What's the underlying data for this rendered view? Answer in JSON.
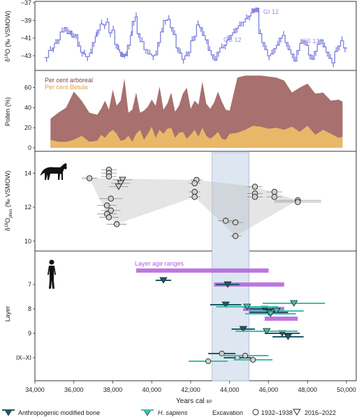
{
  "chart_data": [
    {
      "type": "line",
      "ylabel": "δ18O (‰ VSMOW)",
      "ylim": [
        -44.5,
        -37
      ],
      "yticks": [
        -43,
        -41,
        -39,
        -37
      ],
      "annotations": [
        "GI 12",
        "GS 12",
        "GS 13"
      ],
      "color": "#7d7fe0",
      "series": [
        {
          "x": [
            34500,
            34700,
            34900,
            35000,
            35150,
            35300,
            35500,
            35650,
            35800,
            35900,
            36050,
            36200,
            36350,
            36500,
            36600,
            36800,
            36950,
            37100,
            37200,
            37350,
            37500,
            37650,
            37800,
            37950,
            38100,
            38250,
            38350,
            38450,
            38550,
            38650,
            38750,
            38900,
            39000,
            39150,
            39250,
            39400,
            39600,
            39800,
            40000,
            40150,
            40300,
            40450,
            40600,
            40800,
            40950,
            41100,
            41250,
            41400,
            41550,
            41700,
            41850,
            42000,
            42150,
            42300,
            42450,
            42600,
            42750,
            42900,
            43050,
            43200,
            43350,
            43500,
            43700,
            43850,
            44000,
            44150,
            44300,
            44450,
            44600,
            44800,
            44950,
            45100,
            45200,
            45300,
            45400,
            45500,
            45650,
            45800,
            45950,
            46100,
            46250,
            46400,
            46550,
            46700,
            46850,
            47000,
            47150,
            47300,
            47450,
            47600,
            47750,
            47900,
            48050,
            48200,
            48350,
            48500,
            48650,
            48800,
            48950,
            49100,
            49250,
            49400,
            49550,
            49700,
            49850,
            50000
          ],
          "y": [
            -43.2,
            -42.4,
            -42.1,
            -41.6,
            -41.2,
            -40.3,
            -39.8,
            -40.5,
            -40.2,
            -40.9,
            -40.6,
            -41.9,
            -42.6,
            -42.8,
            -43.1,
            -42.7,
            -41.5,
            -40.8,
            -40.1,
            -39.4,
            -39.5,
            -39.2,
            -40.4,
            -40.1,
            -41.7,
            -42.3,
            -42.6,
            -43.1,
            -42.8,
            -43.0,
            -41.8,
            -40.7,
            -39.1,
            -38.6,
            -40.5,
            -41.4,
            -42.3,
            -42.8,
            -43.0,
            -42.9,
            -41.5,
            -40.3,
            -39.0,
            -38.9,
            -39.8,
            -40.6,
            -42.1,
            -42.7,
            -43.4,
            -43.0,
            -42.6,
            -41.3,
            -40.8,
            -39.5,
            -39.8,
            -40.7,
            -41.2,
            -42.4,
            -42.9,
            -43.5,
            -42.6,
            -42.1,
            -41.8,
            -41.2,
            -40.7,
            -40.4,
            -39.9,
            -39.6,
            -39.2,
            -38.8,
            -38.5,
            -38.1,
            -37.7,
            -38.0,
            -37.6,
            -40.5,
            -41.5,
            -42.3,
            -43.0,
            -42.8,
            -42.2,
            -41.8,
            -41.0,
            -40.7,
            -41.5,
            -42.3,
            -42.8,
            -43.6,
            -42.4,
            -41.6,
            -41.3,
            -41.8,
            -42.9,
            -43.4,
            -42.5,
            -41.7,
            -41.2,
            -42.0,
            -42.6,
            -43.3,
            -43.8,
            -42.5,
            -41.9,
            -41.3,
            -42.1,
            -42.2
          ]
        }
      ]
    },
    {
      "type": "area",
      "ylabel": "Pollen (%)",
      "ylim": [
        0,
        75
      ],
      "yticks": [
        0,
        20,
        40,
        60
      ],
      "x": [
        34800,
        35200,
        35600,
        36000,
        36400,
        36800,
        37200,
        37400,
        37600,
        37800,
        38000,
        38200,
        38400,
        38600,
        38800,
        39000,
        39200,
        39400,
        39600,
        39800,
        40000,
        40200,
        40400,
        40600,
        40800,
        41000,
        41200,
        41400,
        41600,
        41800,
        42000,
        42200,
        42400,
        42600,
        42800,
        43000,
        43200,
        43400,
        43600,
        43800,
        44000,
        44400,
        44800,
        45200,
        45600,
        46000,
        46400,
        46800,
        47200,
        47600,
        48000,
        48400,
        48800,
        49200,
        49600,
        49800
      ],
      "series": [
        {
          "name": "Per cent arboreal",
          "color": "#a8706e",
          "values": [
            29,
            35,
            40,
            56,
            47,
            35,
            33,
            39,
            47,
            38,
            58,
            42,
            47,
            69,
            35,
            38,
            55,
            35,
            37,
            41,
            48,
            42,
            61,
            38,
            44,
            55,
            36,
            42,
            54,
            60,
            39,
            47,
            43,
            66,
            44,
            39,
            45,
            56,
            46,
            38,
            37,
            70,
            72,
            72,
            72,
            71,
            70,
            67,
            55,
            60,
            64,
            54,
            55,
            47,
            48,
            46
          ]
        },
        {
          "name": "Per cent Betula",
          "color": "#e8b868",
          "values": [
            8,
            6,
            6,
            8,
            12,
            6,
            7,
            13,
            10,
            15,
            18,
            14,
            7,
            8,
            12,
            6,
            14,
            18,
            8,
            14,
            21,
            10,
            18,
            14,
            19,
            20,
            10,
            15,
            16,
            9,
            13,
            18,
            11,
            20,
            12,
            9,
            12,
            16,
            9,
            8,
            14,
            15,
            18,
            22,
            21,
            19,
            20,
            18,
            21,
            16,
            22,
            13,
            18,
            14,
            10,
            11
          ]
        }
      ]
    },
    {
      "type": "scatter",
      "ylabel": "δ18Ophos (‰ VSMOW)",
      "ylim": [
        9.5,
        15.2
      ],
      "yticks": [
        10,
        12,
        14
      ],
      "series": [
        {
          "name": "Excavation 1932–1938",
          "marker": "circle",
          "points": [
            {
              "x": 36800,
              "y": 13.7,
              "xerr": 400
            },
            {
              "x": 37800,
              "y": 14.2,
              "xerr": 400
            },
            {
              "x": 37800,
              "y": 14.0,
              "xerr": 400
            },
            {
              "x": 37800,
              "y": 13.8,
              "xerr": 400
            },
            {
              "x": 37900,
              "y": 12.5,
              "xerr": 600
            },
            {
              "x": 37700,
              "y": 12.1,
              "xerr": 500
            },
            {
              "x": 37900,
              "y": 11.8,
              "xerr": 500
            },
            {
              "x": 37700,
              "y": 11.6,
              "xerr": 500
            },
            {
              "x": 37800,
              "y": 11.4,
              "xerr": 500
            },
            {
              "x": 38200,
              "y": 11.0,
              "xerr": 500
            },
            {
              "x": 42300,
              "y": 13.6,
              "xerr": 300
            },
            {
              "x": 42200,
              "y": 13.4,
              "xerr": 300
            },
            {
              "x": 42200,
              "y": 12.9,
              "xerr": 300
            },
            {
              "x": 42200,
              "y": 12.6,
              "xerr": 300
            },
            {
              "x": 43800,
              "y": 11.2,
              "xerr": 400
            },
            {
              "x": 44300,
              "y": 11.1,
              "xerr": 400
            },
            {
              "x": 44300,
              "y": 10.3,
              "xerr": 300
            },
            {
              "x": 45300,
              "y": 13.2,
              "xerr": 400
            },
            {
              "x": 45300,
              "y": 12.8,
              "xerr": 400
            },
            {
              "x": 45300,
              "y": 12.6,
              "xerr": 400
            },
            {
              "x": 46300,
              "y": 12.9,
              "xerr": 400
            },
            {
              "x": 46300,
              "y": 12.6,
              "xerr": 400
            },
            {
              "x": 47500,
              "y": 12.4,
              "xerr": 1200
            },
            {
              "x": 47500,
              "y": 12.3,
              "xerr": 1200
            }
          ]
        },
        {
          "name": "Excavation 2016–2022",
          "marker": "triangle",
          "points": [
            {
              "x": 38500,
              "y": 13.6,
              "xerr": 500
            },
            {
              "x": 38400,
              "y": 13.4,
              "xerr": 500
            },
            {
              "x": 38300,
              "y": 13.2,
              "xerr": 500
            }
          ]
        }
      ]
    },
    {
      "type": "range",
      "title": "Layer age ranges",
      "xlabel": "Years cal BP",
      "xlim": [
        34000,
        50500
      ],
      "xticks": [
        "34,000",
        "36,000",
        "38,000",
        "40,000",
        "42,000",
        "44,000",
        "46,000",
        "48,000",
        "50,000"
      ],
      "xtick_values": [
        34000,
        36000,
        38000,
        40000,
        42000,
        44000,
        46000,
        48000,
        50000
      ],
      "ylabel": "Layer",
      "layers": [
        "7",
        "8",
        "9",
        "IX–XI"
      ],
      "highlight_band": [
        43100,
        45000
      ],
      "layer_age_ranges": [
        {
          "layer": "top",
          "from": 39200,
          "to": 46000
        },
        {
          "layer": "7",
          "from": 43200,
          "to": 46800
        },
        {
          "layer": "8",
          "from": 44700,
          "to": 46800
        },
        {
          "layer": "8.5",
          "from": 45800,
          "to": 47500
        }
      ],
      "series": [
        {
          "name": "Anthropogenic modified bone",
          "color": "#1e5a6a",
          "points": [
            {
              "x": 40600,
              "y": "7",
              "xerr": 400,
              "marker": "triangle"
            },
            {
              "x": 43900,
              "y": "7",
              "xerr": 600,
              "marker": "triangle"
            },
            {
              "x": 43800,
              "y": "8",
              "xerr": 800,
              "marker": "triangle"
            },
            {
              "x": 45800,
              "y": "8",
              "xerr": 800,
              "marker": "triangle"
            },
            {
              "x": 46000,
              "y": "8",
              "xerr": 1000,
              "marker": "triangle"
            },
            {
              "x": 44700,
              "y": "9",
              "xerr": 600,
              "marker": "triangle"
            },
            {
              "x": 46700,
              "y": "9",
              "xerr": 900,
              "marker": "triangle"
            },
            {
              "x": 47000,
              "y": "9",
              "xerr": 800,
              "marker": "triangle"
            },
            {
              "x": 43600,
              "y": "IX–XI",
              "xerr": 700,
              "marker": "circle"
            },
            {
              "x": 44400,
              "y": "IX–XI",
              "xerr": 700,
              "marker": "circle"
            }
          ]
        },
        {
          "name": "H. sapiens",
          "color": "#3cc0a8",
          "points": [
            {
              "x": 44900,
              "y": "8",
              "xerr": 1600,
              "marker": "triangle"
            },
            {
              "x": 46400,
              "y": "8",
              "xerr": 1400,
              "marker": "triangle"
            },
            {
              "x": 47300,
              "y": "8",
              "xerr": 1600,
              "marker": "triangle"
            },
            {
              "x": 46100,
              "y": "8",
              "xerr": 1300,
              "marker": "triangle"
            },
            {
              "x": 45900,
              "y": "9",
              "xerr": 1600,
              "marker": "triangle"
            },
            {
              "x": 42900,
              "y": "IX–XI",
              "xerr": 1000,
              "marker": "circle"
            },
            {
              "x": 44800,
              "y": "IX–XI",
              "xerr": 1200,
              "marker": "circle"
            },
            {
              "x": 45200,
              "y": "IX–XI",
              "xerr": 1000,
              "marker": "circle"
            }
          ]
        }
      ]
    }
  ],
  "legend": {
    "amb": "Anthropogenic modified bone",
    "hs": "H. sapiens",
    "excavation": "Excavation",
    "exc1": "1932–1938",
    "exc2": "2016–2022"
  },
  "labels": {
    "gi12": "GI 12",
    "gs12": "GS 12",
    "gs13": "GS 13",
    "arboreal": "Per cent arboreal",
    "betula": "Per cent Betula",
    "layer_ranges": "Layer age ranges",
    "xlabel": "Years cal",
    "xlabel_sub": "BP",
    "layer": "Layer"
  },
  "colors": {
    "d18o": "#7d7fe0",
    "arboreal": "#a8706e",
    "betula": "#e8b868",
    "band": "#dde6f1",
    "layer_range": "#b35fdb",
    "amb": "#1e5a6a",
    "hs": "#3cc0a8",
    "label_purple": "#9c8be3",
    "pollen_label_arb": "#8a3c3c",
    "pollen_label_bet": "#e0a040"
  }
}
